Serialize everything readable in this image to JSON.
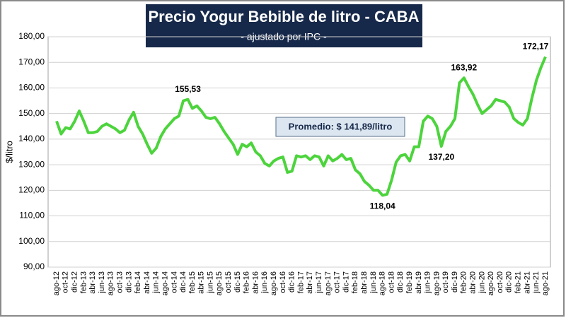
{
  "chart_data": {
    "type": "line",
    "title": "Precio Yogur Bebible de litro - CABA",
    "subtitle": "- ajustado por IPC -",
    "ylabel": "$/litro",
    "annotation": "Promedio: $ 141,89/litro",
    "categories": [
      "ago-12",
      null,
      "oct-12",
      null,
      "dic-12",
      null,
      "feb-13",
      null,
      "abr-13",
      null,
      "jun-13",
      null,
      "ago-13",
      null,
      "oct-13",
      null,
      "dic-13",
      null,
      "feb-14",
      null,
      "abr-14",
      null,
      "jun-14",
      null,
      "ago-14",
      null,
      "oct-14",
      null,
      "dic-14",
      null,
      "feb-15",
      null,
      "abr-15",
      null,
      "jun-15",
      null,
      "ago-15",
      null,
      "oct-15",
      null,
      "dic-15",
      null,
      "feb-16",
      null,
      "abr-16",
      null,
      "jun-16",
      null,
      "ago-16",
      null,
      "oct-16",
      null,
      "dic-16",
      null,
      "feb-17",
      null,
      "abr-17",
      null,
      "jun-17",
      null,
      "ago-17",
      null,
      "oct-17",
      null,
      "dic-17",
      null,
      "feb-18",
      null,
      "abr-18",
      null,
      "jun-18",
      null,
      "ago-18",
      null,
      "oct-18",
      null,
      "dic-18",
      null,
      "feb-19",
      null,
      "abr-19",
      null,
      "jun-19",
      null,
      "ago-19",
      null,
      "oct-19",
      null,
      "dic-19",
      null,
      "feb-20",
      null,
      "abr-20",
      null,
      "jun-20",
      null,
      "ago-20",
      null,
      "oct-20",
      null,
      "dic-20",
      null,
      "feb-21",
      null,
      "abr-21",
      null,
      "jun-21",
      null,
      "ago-21"
    ],
    "series": [
      {
        "name": "Precio",
        "color": "#4cd43c",
        "values": [
          147,
          142,
          144.5,
          144,
          147,
          151,
          147,
          142.5,
          142.5,
          143,
          145,
          146,
          145,
          144,
          142.5,
          143.5,
          147.5,
          150.5,
          145,
          142,
          138,
          134.5,
          136.5,
          141,
          144,
          146,
          148,
          149,
          155,
          155.53,
          152,
          153,
          151,
          148.5,
          148,
          148.5,
          146,
          143,
          140.5,
          138,
          134,
          138,
          137,
          138.5,
          135,
          133.5,
          130.5,
          129.5,
          131.5,
          132.5,
          133,
          127,
          127.5,
          133.5,
          133,
          133.5,
          132,
          133.5,
          133,
          129.5,
          133.5,
          131.5,
          132.5,
          134,
          132,
          132.5,
          128,
          126.5,
          123.5,
          122,
          120,
          120,
          118.04,
          118.5,
          124,
          131,
          133.5,
          134,
          131.5,
          137,
          137,
          147,
          149,
          148,
          145,
          137.2,
          143,
          145,
          148,
          162,
          163.92,
          160.5,
          157.5,
          153.5,
          150,
          151.5,
          153,
          155.5,
          155,
          154.5,
          152.5,
          148,
          146.5,
          145.5,
          148,
          156,
          163,
          168,
          172.17
        ],
        "value_labels": [
          null,
          null,
          null,
          null,
          null,
          null,
          null,
          null,
          null,
          null,
          null,
          null,
          null,
          null,
          null,
          null,
          null,
          null,
          null,
          null,
          null,
          null,
          null,
          null,
          null,
          null,
          null,
          null,
          null,
          "155,53",
          null,
          null,
          null,
          null,
          null,
          null,
          null,
          null,
          null,
          null,
          null,
          null,
          null,
          null,
          null,
          null,
          null,
          null,
          null,
          null,
          null,
          null,
          null,
          null,
          null,
          null,
          null,
          null,
          null,
          null,
          null,
          null,
          null,
          null,
          null,
          null,
          null,
          null,
          null,
          null,
          null,
          null,
          "118,04",
          null,
          null,
          null,
          null,
          null,
          null,
          null,
          null,
          null,
          null,
          null,
          null,
          "137,20",
          null,
          null,
          null,
          null,
          "163,92",
          null,
          null,
          null,
          null,
          null,
          null,
          null,
          null,
          null,
          null,
          null,
          null,
          null,
          null,
          null,
          null,
          null,
          "172,17"
        ]
      }
    ],
    "ylim": [
      90,
      180
    ],
    "yticks": [
      {
        "value": 90,
        "label": "90,00"
      },
      {
        "value": 100,
        "label": "100,00"
      },
      {
        "value": 110,
        "label": "110,00"
      },
      {
        "value": 120,
        "label": "120,00"
      },
      {
        "value": 130,
        "label": "130,00"
      },
      {
        "value": 140,
        "label": "140,00"
      },
      {
        "value": 150,
        "label": "150,00"
      },
      {
        "value": 160,
        "label": "160,00"
      },
      {
        "value": 170,
        "label": "170,00"
      },
      {
        "value": 180,
        "label": "180,00"
      }
    ],
    "grid": true
  }
}
